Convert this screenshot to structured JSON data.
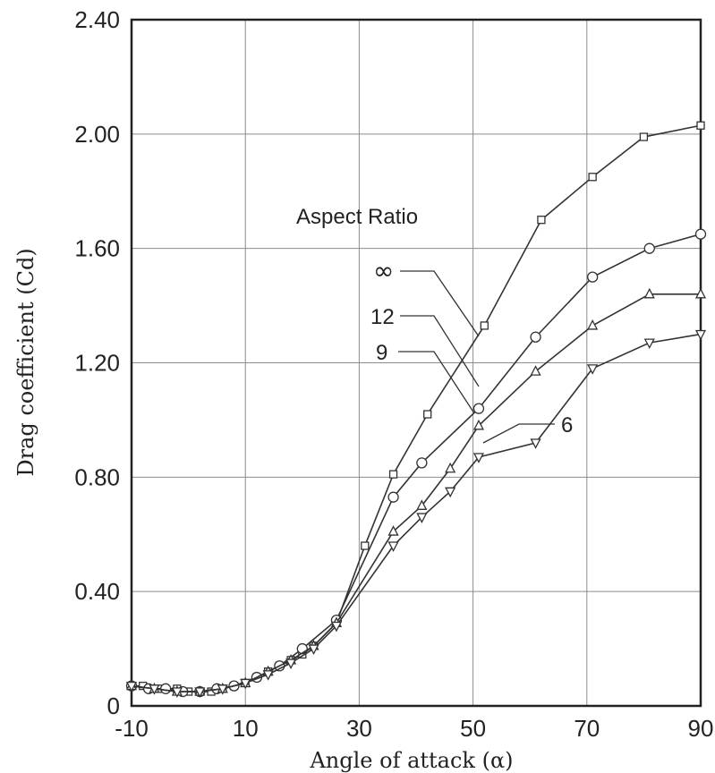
{
  "chart_data": {
    "type": "line",
    "xlabel": "Angle of attack (α)",
    "ylabel": "Drag coefficient (Cd)",
    "xlim": [
      -10,
      90
    ],
    "ylim": [
      0,
      2.4
    ],
    "x_ticks": [
      -10,
      10,
      30,
      50,
      70,
      90
    ],
    "x_tick_labels": [
      "-10",
      "10",
      "30",
      "50",
      "70",
      "90"
    ],
    "y_ticks": [
      0,
      0.4,
      0.8,
      1.2,
      1.6,
      2.0,
      2.4
    ],
    "y_tick_labels": [
      "0",
      "0.40",
      "0.80",
      "1.20",
      "1.60",
      "2.00",
      "2.40"
    ],
    "grid": true,
    "legend_title": "Aspect Ratio",
    "series": [
      {
        "name": "∞",
        "marker": "square",
        "x": [
          -10,
          -8,
          -5,
          -2,
          0,
          2,
          4,
          6,
          8,
          10,
          12,
          14,
          16,
          18,
          20,
          22,
          26,
          31,
          36,
          42,
          52,
          62,
          71,
          80,
          90
        ],
        "y": [
          0.07,
          0.07,
          0.06,
          0.06,
          0.05,
          0.05,
          0.05,
          0.06,
          0.07,
          0.08,
          0.1,
          0.12,
          0.14,
          0.16,
          0.18,
          0.21,
          0.29,
          0.56,
          0.81,
          1.02,
          1.33,
          1.7,
          1.85,
          1.99,
          2.03
        ]
      },
      {
        "name": "12",
        "marker": "circle",
        "x": [
          -10,
          -7,
          -4,
          -1,
          2,
          5,
          8,
          12,
          16,
          20,
          26,
          36,
          41,
          51,
          61,
          71,
          81,
          90
        ],
        "y": [
          0.07,
          0.06,
          0.06,
          0.05,
          0.05,
          0.06,
          0.07,
          0.1,
          0.14,
          0.2,
          0.3,
          0.73,
          0.85,
          1.04,
          1.29,
          1.5,
          1.6,
          1.65
        ]
      },
      {
        "name": "9",
        "marker": "triangle-up",
        "x": [
          -10,
          -6,
          -2,
          2,
          6,
          10,
          14,
          18,
          22,
          26,
          36,
          41,
          46,
          51,
          61,
          71,
          81,
          90
        ],
        "y": [
          0.07,
          0.06,
          0.05,
          0.05,
          0.06,
          0.08,
          0.12,
          0.16,
          0.21,
          0.29,
          0.61,
          0.7,
          0.83,
          0.98,
          1.17,
          1.33,
          1.44,
          1.44
        ]
      },
      {
        "name": "6",
        "marker": "triangle-down",
        "x": [
          -10,
          -6,
          -2,
          2,
          6,
          10,
          14,
          18,
          22,
          26,
          36,
          41,
          46,
          51,
          61,
          71,
          81,
          90
        ],
        "y": [
          0.07,
          0.06,
          0.05,
          0.05,
          0.06,
          0.08,
          0.11,
          0.15,
          0.2,
          0.28,
          0.56,
          0.66,
          0.75,
          0.87,
          0.92,
          1.18,
          1.27,
          1.3
        ]
      }
    ]
  }
}
